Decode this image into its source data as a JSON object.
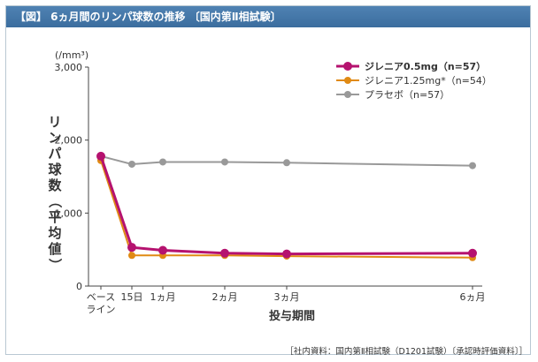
{
  "header": {
    "title": "【図】 6ヵ月間のリンパ球数の推移 〔国内第Ⅱ相試験〕"
  },
  "source_note": "［社内資料：国内第Ⅱ相試験（D1201試験）〔承認時評価資料〕］",
  "colors": {
    "header_bg": "#3f72a4",
    "gilenya_05": "#b5126f",
    "gilenya_125": "#e08a14",
    "placebo": "#999999"
  },
  "chart_data": {
    "type": "line",
    "title": "",
    "unit_label": "(/mm³)",
    "ylabel": "リンパ球数（平均値）",
    "xlabel": "投与期間",
    "ylim": [
      0,
      3000
    ],
    "yticks": [
      "0",
      "1,000",
      "2,000",
      "3,000"
    ],
    "y_tick_values": [
      0,
      1000,
      2000,
      3000
    ],
    "x_positions": [
      0,
      15,
      30,
      60,
      90,
      180
    ],
    "x_tick_labels": [
      [
        "ベース",
        "ライン"
      ],
      [
        "15日"
      ],
      [
        "1ヵ月"
      ],
      [
        "2ヵ月"
      ],
      [
        "3ヵ月"
      ],
      [
        "6ヵ月"
      ]
    ],
    "grid": false,
    "legend_placement": "top-right",
    "series": [
      {
        "name": "プラセボ（n=57）",
        "color": "#999999",
        "values": [
          1780,
          1670,
          1700,
          1700,
          1690,
          1650
        ],
        "bold": false
      },
      {
        "name": "ジレニア1.25mg*（n=54）",
        "color": "#e08a14",
        "values": [
          1720,
          420,
          420,
          420,
          410,
          390
        ],
        "bold": false
      },
      {
        "name": "ジレニア0.5mg（n=57）",
        "color": "#b5126f",
        "values": [
          1780,
          530,
          490,
          450,
          440,
          450
        ],
        "bold": true
      }
    ],
    "legend_order": [
      2,
      1,
      0
    ]
  }
}
